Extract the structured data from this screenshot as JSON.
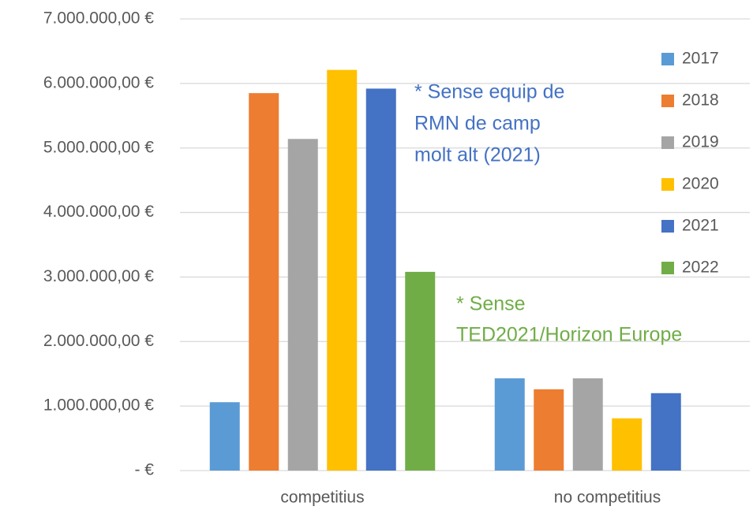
{
  "chart_data": {
    "type": "bar",
    "categories": [
      "competitius",
      "no competitius"
    ],
    "series": [
      {
        "name": "2017",
        "color": "#5b9bd5",
        "values": [
          1060000,
          1430000
        ]
      },
      {
        "name": "2018",
        "color": "#ed7d31",
        "values": [
          5850000,
          1260000
        ]
      },
      {
        "name": "2019",
        "color": "#a5a5a5",
        "values": [
          5140000,
          1430000
        ]
      },
      {
        "name": "2020",
        "color": "#ffc000",
        "values": [
          6210000,
          810000
        ]
      },
      {
        "name": "2021",
        "color": "#4472c4",
        "values": [
          5920000,
          1200000
        ]
      },
      {
        "name": "2022",
        "color": "#70ad47",
        "values": [
          3080000,
          null
        ]
      }
    ],
    "ylim": [
      0,
      7000000
    ],
    "yticks": [
      {
        "value": 0,
        "label": "-  €"
      },
      {
        "value": 1000000,
        "label": "1.000.000,00 €"
      },
      {
        "value": 2000000,
        "label": "2.000.000,00 €"
      },
      {
        "value": 3000000,
        "label": "3.000.000,00 €"
      },
      {
        "value": 4000000,
        "label": "4.000.000,00 €"
      },
      {
        "value": 5000000,
        "label": "5.000.000,00 €"
      },
      {
        "value": 6000000,
        "label": "6.000.000,00 €"
      },
      {
        "value": 7000000,
        "label": "7.000.000,00 €"
      }
    ],
    "grid": true,
    "legend": "right",
    "annotations": [
      {
        "lines": [
          "* Sense equip de",
          "RMN de camp",
          "molt alt (2021)"
        ],
        "color": "#4472c4"
      },
      {
        "lines": [
          "* Sense",
          "TED2021/Horizon Europe"
        ],
        "color": "#70ad47"
      }
    ]
  }
}
